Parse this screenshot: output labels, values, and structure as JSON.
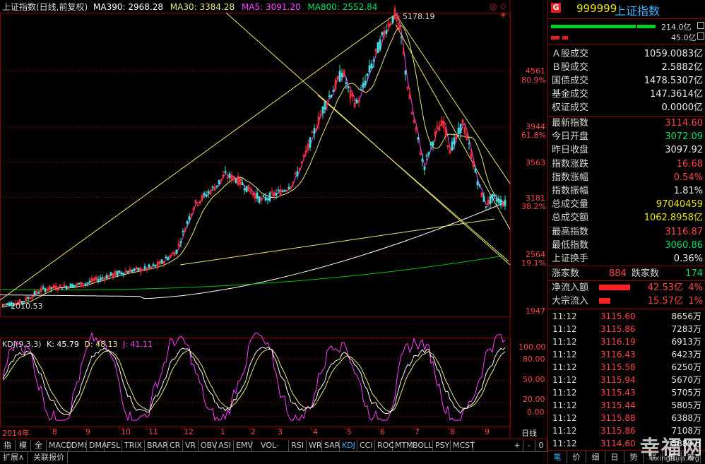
{
  "main_header": {
    "title": "上证指数(日线,前复权)",
    "ma390": "MA390: 2968.28",
    "ma30": "MA30: 3384.28",
    "ma5": "MA5: 3091.20",
    "ma800": "MA800: 2552.84"
  },
  "main_chart": {
    "high_label": "5178.19",
    "low_label": "2010.53",
    "price_levels": [
      {
        "price": "4561",
        "pct": "80.9%"
      },
      {
        "price": "3944",
        "pct": "61.8%"
      },
      {
        "price": "3563",
        "pct": ""
      },
      {
        "price": "3181",
        "pct": "38.2%"
      },
      {
        "price": "2564",
        "pct": "19.1%"
      },
      {
        "price": "1947",
        "pct": ""
      }
    ],
    "colors": {
      "up": "#ff3232",
      "down": "#40e0e0",
      "ma5": "#ff40ff",
      "ma30": "#e8e880",
      "ma390": "#ffffff",
      "ma800": "#00c000",
      "trend": "#e8e870"
    }
  },
  "kdj_header": {
    "name": "KDJ(9,3,3)",
    "k": "K: 45.79",
    "d": "D: 48.13",
    "j": "J: 41.11"
  },
  "kdj_levels": [
    "100.00",
    "80.00",
    "50.00",
    "20.00",
    "0.00"
  ],
  "time_axis": {
    "year_label": "2014年",
    "months": [
      "8",
      "9",
      "10",
      "11",
      "12",
      "1",
      "2",
      "3",
      "4",
      "5",
      "6",
      "7",
      "8",
      "9"
    ],
    "period": "日线"
  },
  "indicator_tabs": [
    "指标",
    "模板",
    "全部",
    "MACD",
    "DMI",
    "DMA",
    "FSL",
    "TRIX",
    "BRAR",
    "CR",
    "VR",
    "OBV",
    "ASI",
    "EMV",
    "VOL-TDX",
    "RSI",
    "WR",
    "SAR",
    "KDJ",
    "CCI",
    "ROC",
    "MTM",
    "BOLL",
    "PSY",
    "MCST"
  ],
  "tab_controls": [
    "+",
    "-",
    "0"
  ],
  "bottom_tabs": [
    "扩展∧",
    "关联报价"
  ],
  "side": {
    "badge": "G",
    "code": "999999",
    "name": "上证指数",
    "bar_up": "214.0亿",
    "bar_down": "45.0亿",
    "turnover": [
      {
        "label": "Ａ股成交",
        "value": "1059.0083亿"
      },
      {
        "label": "Ｂ股成交",
        "value": "2.5882亿"
      },
      {
        "label": "国债成交",
        "value": "1478.5307亿"
      },
      {
        "label": "基金成交",
        "value": "147.3614亿"
      },
      {
        "label": "权证成交",
        "value": "0.0000亿"
      }
    ],
    "stats": [
      {
        "label": "最新指数",
        "value": "3114.60",
        "color": "red"
      },
      {
        "label": "今日开盘",
        "value": "3072.09",
        "color": "green"
      },
      {
        "label": "昨日收盘",
        "value": "3097.92",
        "color": "white"
      },
      {
        "label": "指数涨跌",
        "value": "16.68",
        "color": "red"
      },
      {
        "label": "指数涨幅",
        "value": "0.54%",
        "color": "red"
      },
      {
        "label": "指数振幅",
        "value": "1.81%",
        "color": "white"
      },
      {
        "label": "总成交量",
        "value": "97040459",
        "color": "yellow"
      },
      {
        "label": "总成交额",
        "value": "1062.8958亿",
        "color": "yellow"
      },
      {
        "label": "最高指数",
        "value": "3116.87",
        "color": "red"
      },
      {
        "label": "最低指数",
        "value": "3060.86",
        "color": "green"
      },
      {
        "label": "上证换手",
        "value": "0.36%",
        "color": "white"
      }
    ],
    "breadth": {
      "up_label": "涨家数",
      "up_value": "884",
      "down_label": "跌家数",
      "down_value": "174"
    },
    "flows": [
      {
        "label": "净流入额",
        "value": "42.53亿",
        "pct": "4%",
        "bar": 0.78
      },
      {
        "label": "大宗流入",
        "value": "15.57亿",
        "pct": "1%",
        "bar": 0.28
      }
    ],
    "ticks": [
      {
        "time": "11:12",
        "price": "3115.60",
        "vol": "8656万"
      },
      {
        "time": "11:12",
        "price": "3115.86",
        "vol": "7283万"
      },
      {
        "time": "11:12",
        "price": "3116.19",
        "vol": "6913万"
      },
      {
        "time": "11:12",
        "price": "3116.43",
        "vol": "6423万"
      },
      {
        "time": "11:12",
        "price": "3115.58",
        "vol": "6250万"
      },
      {
        "time": "11:12",
        "price": "3115.94",
        "vol": "5670万"
      },
      {
        "time": "11:12",
        "price": "3115.43",
        "vol": "5705万"
      },
      {
        "time": "11:12",
        "price": "3115.44",
        "vol": "5805万"
      },
      {
        "time": "11:12",
        "price": "3115.88",
        "vol": "6388万"
      },
      {
        "time": "11:12",
        "price": "3115.86",
        "vol": "7108万"
      },
      {
        "time": "11:12",
        "price": "3114.60",
        "vol": "5889万"
      }
    ],
    "tabs": [
      "笔",
      "价",
      "细",
      "日",
      "势",
      "联",
      "值",
      "筹"
    ]
  },
  "watermark": {
    "text": "幸福网",
    "url": "xingfujia.org"
  }
}
